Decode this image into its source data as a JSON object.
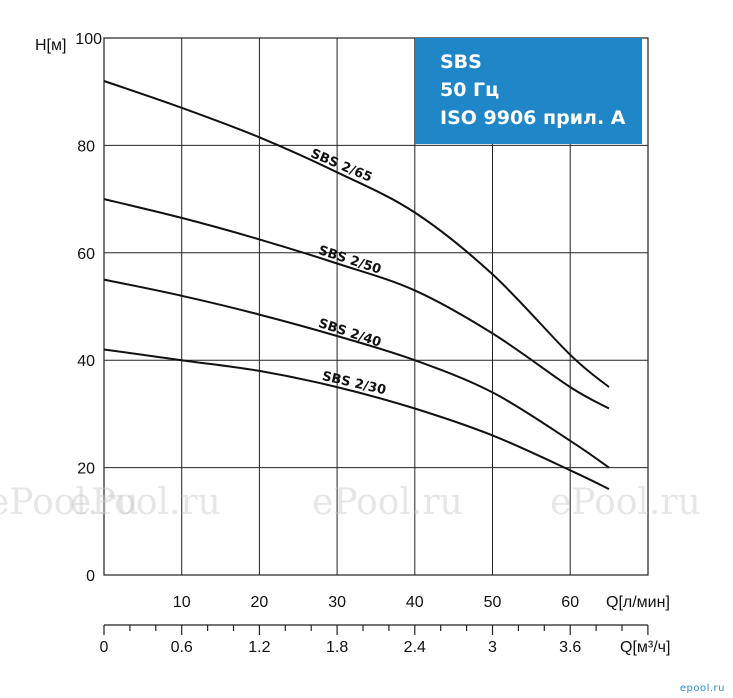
{
  "chart_data": {
    "type": "line",
    "y_axis": {
      "label": "H[м]",
      "min": 0,
      "max": 100,
      "ticks": [
        "100",
        "80",
        "60",
        "40",
        "20",
        "0"
      ]
    },
    "x_axis_primary": {
      "label": "Q[л/мин]",
      "min": 0,
      "max": 70,
      "ticks": [
        "10",
        "20",
        "30",
        "40",
        "50",
        "60"
      ]
    },
    "x_axis_secondary": {
      "label": "Q[м³/ч]",
      "ticks": [
        "0",
        "0.6",
        "1.2",
        "1.8",
        "2.4",
        "3",
        "3.6"
      ]
    },
    "grid": true,
    "legend_box": {
      "lines": [
        "SBS",
        "50 Гц",
        "ISO 9906 прил. A"
      ],
      "color": "#1f86c8"
    },
    "series": [
      {
        "name": "SBS 2/65",
        "x": [
          0,
          10,
          20,
          30,
          40,
          50,
          60,
          65
        ],
        "y": [
          92,
          87,
          81.5,
          75,
          67.5,
          56,
          41,
          35
        ]
      },
      {
        "name": "SBS 2/50",
        "x": [
          0,
          10,
          20,
          30,
          40,
          50,
          60,
          65
        ],
        "y": [
          70,
          66.5,
          62.5,
          58,
          53,
          45,
          35,
          31
        ]
      },
      {
        "name": "SBS 2/40",
        "x": [
          0,
          10,
          20,
          30,
          40,
          50,
          60,
          65
        ],
        "y": [
          55,
          52,
          48.5,
          44.5,
          40,
          34,
          25,
          20
        ]
      },
      {
        "name": "SBS 2/30",
        "x": [
          0,
          10,
          20,
          30,
          40,
          50,
          60,
          65
        ],
        "y": [
          42,
          40,
          38,
          35,
          31,
          26,
          19.5,
          16
        ]
      }
    ]
  },
  "watermark": "ePool.ru",
  "corner_logo": "epool.ru"
}
